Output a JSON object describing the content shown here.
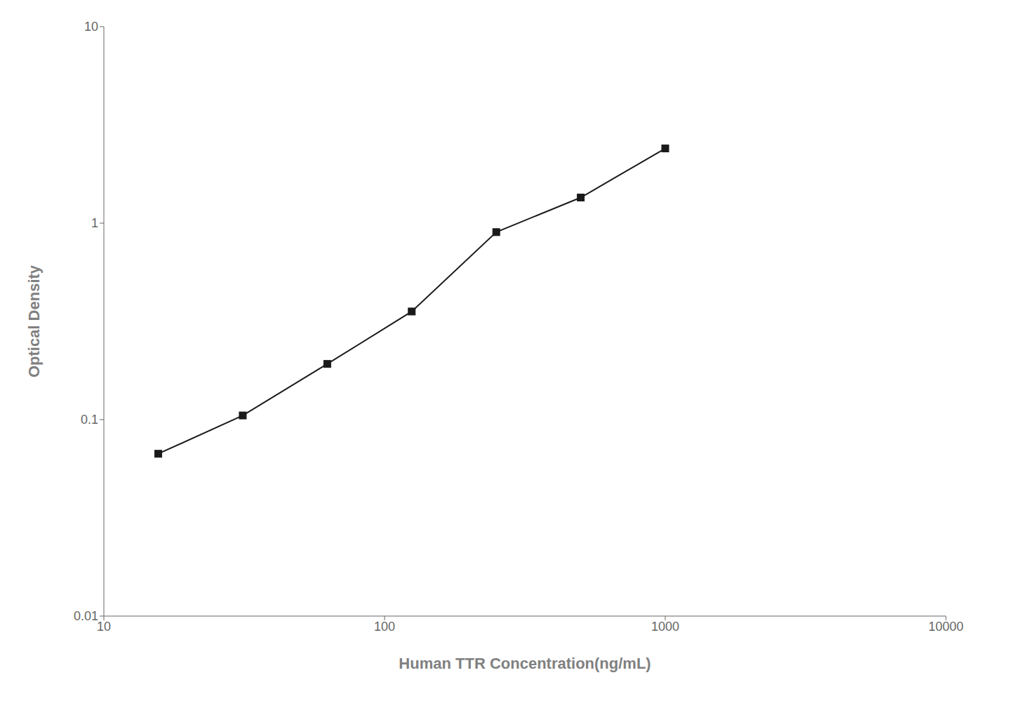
{
  "chart_data": {
    "type": "line",
    "x": [
      15.625,
      31.25,
      62.5,
      125,
      250,
      500,
      1000
    ],
    "values": [
      0.067,
      0.105,
      0.192,
      0.355,
      0.9,
      1.35,
      2.4
    ],
    "xlabel": "Human TTR Concentration(ng/mL)",
    "ylabel": "Optical Density",
    "xlim": [
      10,
      10000
    ],
    "ylim": [
      0.01,
      10
    ],
    "xticks": [
      10,
      100,
      1000,
      10000
    ],
    "yticks": [
      0.01,
      0.1,
      1,
      10
    ],
    "log": true,
    "grid": false,
    "color": "#1a1a1a",
    "marker": "square"
  }
}
